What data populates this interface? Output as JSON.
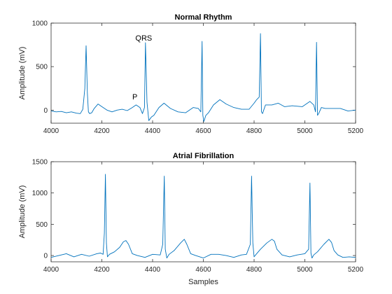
{
  "figure": {
    "background": "#ffffff",
    "line_color": "#0072BD"
  },
  "chart_data": [
    {
      "type": "line",
      "title": "Normal Rhythm",
      "xlabel": "",
      "ylabel": "Amplitude (mV)",
      "xlim": [
        4000,
        5200
      ],
      "ylim": [
        -150,
        1000
      ],
      "xticks": [
        4000,
        4200,
        4400,
        4600,
        4800,
        5000,
        5200
      ],
      "yticks": [
        0,
        500,
        1000
      ],
      "annotations": [
        {
          "text": "QRS",
          "x": 4365,
          "y": 800
        },
        {
          "text": "P",
          "x": 4330,
          "y": 125
        }
      ],
      "series": [
        {
          "name": "",
          "x": [
            4000,
            4020,
            4040,
            4060,
            4080,
            4100,
            4115,
            4125,
            4133,
            4138,
            4143,
            4147,
            4152,
            4160,
            4170,
            4185,
            4200,
            4220,
            4240,
            4260,
            4280,
            4300,
            4320,
            4335,
            4350,
            4360,
            4368,
            4372,
            4378,
            4385,
            4395,
            4405,
            4425,
            4445,
            4470,
            4500,
            4530,
            4560,
            4580,
            4590,
            4595,
            4598,
            4602,
            4610,
            4620,
            4640,
            4665,
            4690,
            4720,
            4750,
            4780,
            4800,
            4810,
            4820,
            4825,
            4829,
            4833,
            4845,
            4870,
            4895,
            4920,
            4950,
            4990,
            5020,
            5035,
            5042,
            5046,
            5050,
            5056,
            5065,
            5080,
            5110,
            5140,
            5170,
            5200
          ],
          "y": [
            -10,
            -20,
            -15,
            -30,
            -20,
            -35,
            -40,
            10,
            250,
            740,
            200,
            -20,
            -40,
            -30,
            20,
            70,
            40,
            0,
            -20,
            0,
            10,
            -5,
            30,
            60,
            30,
            -40,
            30,
            775,
            90,
            -120,
            -80,
            -60,
            30,
            80,
            20,
            -20,
            -30,
            30,
            20,
            -20,
            790,
            -60,
            -130,
            -60,
            -30,
            60,
            120,
            70,
            30,
            10,
            10,
            80,
            120,
            150,
            880,
            -20,
            -40,
            60,
            60,
            80,
            40,
            50,
            40,
            100,
            60,
            -20,
            780,
            -60,
            -30,
            30,
            20,
            20,
            20,
            -10,
            0
          ]
        }
      ]
    },
    {
      "type": "line",
      "title": "Atrial Fibrillation",
      "xlabel": "Samples",
      "ylabel": "Amplitude (mV)",
      "xlim": [
        4000,
        5200
      ],
      "ylim": [
        -100,
        1500
      ],
      "xticks": [
        4000,
        4200,
        4400,
        4600,
        4800,
        5000,
        5200
      ],
      "yticks": [
        0,
        500,
        1000,
        1500
      ],
      "series": [
        {
          "name": "",
          "x": [
            4000,
            4030,
            4060,
            4090,
            4120,
            4150,
            4180,
            4195,
            4205,
            4210,
            4214,
            4218,
            4222,
            4230,
            4250,
            4270,
            4285,
            4295,
            4305,
            4320,
            4340,
            4370,
            4400,
            4430,
            4440,
            4446,
            4450,
            4456,
            4465,
            4485,
            4510,
            4525,
            4535,
            4550,
            4570,
            4600,
            4630,
            4660,
            4690,
            4720,
            4750,
            4770,
            4785,
            4790,
            4795,
            4800,
            4808,
            4825,
            4850,
            4870,
            4880,
            4890,
            4910,
            4940,
            4970,
            5000,
            5015,
            5020,
            5024,
            5028,
            5035,
            5050,
            5075,
            5095,
            5105,
            5115,
            5130,
            5150,
            5175,
            5200
          ],
          "y": [
            -30,
            0,
            30,
            -20,
            20,
            -10,
            30,
            40,
            20,
            360,
            1300,
            200,
            -20,
            20,
            60,
            130,
            220,
            240,
            180,
            30,
            0,
            -30,
            20,
            10,
            180,
            1270,
            100,
            -40,
            20,
            80,
            200,
            260,
            180,
            30,
            0,
            -40,
            20,
            20,
            0,
            -30,
            10,
            20,
            180,
            1270,
            200,
            -20,
            20,
            100,
            200,
            260,
            230,
            100,
            10,
            -20,
            10,
            30,
            100,
            1160,
            40,
            -40,
            10,
            60,
            180,
            260,
            210,
            80,
            10,
            -30,
            -20,
            -30
          ]
        }
      ]
    }
  ]
}
